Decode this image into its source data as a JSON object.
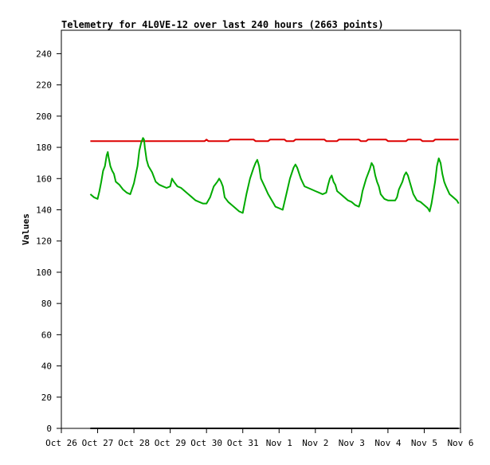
{
  "chart_data": {
    "type": "line",
    "title": "Telemetry for 4L0VE-12 over last 240 hours (2663 points)",
    "xlabel": "",
    "ylabel": "Values",
    "xlim": [
      0,
      11
    ],
    "ylim": [
      0,
      255
    ],
    "grid": false,
    "x_ticks": [
      {
        "x": 0,
        "label": "Oct 26"
      },
      {
        "x": 1,
        "label": "Oct 27"
      },
      {
        "x": 2,
        "label": "Oct 28"
      },
      {
        "x": 3,
        "label": "Oct 29"
      },
      {
        "x": 4,
        "label": "Oct 30"
      },
      {
        "x": 5,
        "label": "Oct 31"
      },
      {
        "x": 6,
        "label": "Nov 1"
      },
      {
        "x": 7,
        "label": "Nov 2"
      },
      {
        "x": 8,
        "label": "Nov 3"
      },
      {
        "x": 9,
        "label": "Nov 4"
      },
      {
        "x": 10,
        "label": "Nov 5"
      },
      {
        "x": 11,
        "label": "Nov 6"
      }
    ],
    "y_ticks": [
      0,
      20,
      40,
      60,
      80,
      100,
      120,
      140,
      160,
      180,
      200,
      220,
      240
    ],
    "series": [
      {
        "color": "#dd0000",
        "points": [
          [
            0.8,
            184
          ],
          [
            3.95,
            184
          ],
          [
            4.0,
            185
          ],
          [
            4.05,
            184
          ],
          [
            4.6,
            184
          ],
          [
            4.65,
            185
          ],
          [
            5.3,
            185
          ],
          [
            5.35,
            184
          ],
          [
            5.7,
            184
          ],
          [
            5.75,
            185
          ],
          [
            6.15,
            185
          ],
          [
            6.2,
            184
          ],
          [
            6.4,
            184
          ],
          [
            6.45,
            185
          ],
          [
            7.25,
            185
          ],
          [
            7.3,
            184
          ],
          [
            7.6,
            184
          ],
          [
            7.65,
            185
          ],
          [
            8.2,
            185
          ],
          [
            8.25,
            184
          ],
          [
            8.4,
            184
          ],
          [
            8.45,
            185
          ],
          [
            8.95,
            185
          ],
          [
            9.0,
            184
          ],
          [
            9.5,
            184
          ],
          [
            9.55,
            185
          ],
          [
            9.9,
            185
          ],
          [
            9.95,
            184
          ],
          [
            10.25,
            184
          ],
          [
            10.3,
            185
          ],
          [
            10.95,
            185
          ]
        ]
      },
      {
        "color": "#00aa00",
        "points": [
          [
            0.8,
            150
          ],
          [
            0.9,
            148
          ],
          [
            1.0,
            147
          ],
          [
            1.05,
            152
          ],
          [
            1.1,
            158
          ],
          [
            1.15,
            165
          ],
          [
            1.2,
            168
          ],
          [
            1.25,
            175
          ],
          [
            1.28,
            177
          ],
          [
            1.3,
            174
          ],
          [
            1.35,
            168
          ],
          [
            1.4,
            165
          ],
          [
            1.45,
            163
          ],
          [
            1.5,
            158
          ],
          [
            1.6,
            156
          ],
          [
            1.7,
            153
          ],
          [
            1.8,
            151
          ],
          [
            1.9,
            150
          ],
          [
            2.0,
            157
          ],
          [
            2.1,
            168
          ],
          [
            2.15,
            178
          ],
          [
            2.2,
            183
          ],
          [
            2.25,
            186
          ],
          [
            2.28,
            185
          ],
          [
            2.3,
            180
          ],
          [
            2.35,
            172
          ],
          [
            2.4,
            168
          ],
          [
            2.5,
            164
          ],
          [
            2.6,
            158
          ],
          [
            2.7,
            156
          ],
          [
            2.8,
            155
          ],
          [
            2.9,
            154
          ],
          [
            3.0,
            155
          ],
          [
            3.05,
            160
          ],
          [
            3.1,
            158
          ],
          [
            3.2,
            155
          ],
          [
            3.3,
            154
          ],
          [
            3.4,
            152
          ],
          [
            3.5,
            150
          ],
          [
            3.6,
            148
          ],
          [
            3.7,
            146
          ],
          [
            3.8,
            145
          ],
          [
            3.9,
            144
          ],
          [
            4.0,
            144
          ],
          [
            4.1,
            148
          ],
          [
            4.2,
            155
          ],
          [
            4.3,
            158
          ],
          [
            4.35,
            160
          ],
          [
            4.4,
            158
          ],
          [
            4.45,
            155
          ],
          [
            4.5,
            148
          ],
          [
            4.6,
            145
          ],
          [
            4.7,
            143
          ],
          [
            4.8,
            141
          ],
          [
            4.9,
            139
          ],
          [
            5.0,
            138
          ],
          [
            5.1,
            150
          ],
          [
            5.2,
            160
          ],
          [
            5.3,
            167
          ],
          [
            5.35,
            170
          ],
          [
            5.4,
            172
          ],
          [
            5.45,
            168
          ],
          [
            5.5,
            160
          ],
          [
            5.6,
            155
          ],
          [
            5.7,
            150
          ],
          [
            5.8,
            146
          ],
          [
            5.9,
            142
          ],
          [
            6.0,
            141
          ],
          [
            6.1,
            140
          ],
          [
            6.15,
            145
          ],
          [
            6.2,
            150
          ],
          [
            6.3,
            160
          ],
          [
            6.4,
            167
          ],
          [
            6.45,
            169
          ],
          [
            6.5,
            167
          ],
          [
            6.6,
            160
          ],
          [
            6.7,
            155
          ],
          [
            6.8,
            154
          ],
          [
            6.9,
            153
          ],
          [
            7.0,
            152
          ],
          [
            7.1,
            151
          ],
          [
            7.2,
            150
          ],
          [
            7.3,
            151
          ],
          [
            7.35,
            156
          ],
          [
            7.4,
            160
          ],
          [
            7.45,
            162
          ],
          [
            7.5,
            158
          ],
          [
            7.55,
            156
          ],
          [
            7.6,
            152
          ],
          [
            7.7,
            150
          ],
          [
            7.8,
            148
          ],
          [
            7.9,
            146
          ],
          [
            8.0,
            145
          ],
          [
            8.1,
            143
          ],
          [
            8.2,
            142
          ],
          [
            8.25,
            146
          ],
          [
            8.3,
            152
          ],
          [
            8.4,
            160
          ],
          [
            8.5,
            166
          ],
          [
            8.55,
            170
          ],
          [
            8.6,
            168
          ],
          [
            8.65,
            162
          ],
          [
            8.7,
            158
          ],
          [
            8.75,
            155
          ],
          [
            8.8,
            150
          ],
          [
            8.9,
            147
          ],
          [
            9.0,
            146
          ],
          [
            9.1,
            146
          ],
          [
            9.2,
            146
          ],
          [
            9.25,
            148
          ],
          [
            9.3,
            153
          ],
          [
            9.4,
            158
          ],
          [
            9.45,
            162
          ],
          [
            9.5,
            164
          ],
          [
            9.55,
            162
          ],
          [
            9.6,
            158
          ],
          [
            9.7,
            150
          ],
          [
            9.8,
            146
          ],
          [
            9.9,
            145
          ],
          [
            10.0,
            143
          ],
          [
            10.1,
            141
          ],
          [
            10.15,
            139
          ],
          [
            10.2,
            144
          ],
          [
            10.3,
            158
          ],
          [
            10.35,
            168
          ],
          [
            10.4,
            173
          ],
          [
            10.45,
            170
          ],
          [
            10.5,
            163
          ],
          [
            10.55,
            158
          ],
          [
            10.6,
            155
          ],
          [
            10.7,
            150
          ],
          [
            10.8,
            148
          ],
          [
            10.9,
            146
          ],
          [
            10.95,
            144
          ]
        ]
      },
      {
        "color": "#000000",
        "points": [
          [
            0.8,
            0
          ],
          [
            10.95,
            0
          ]
        ]
      }
    ]
  }
}
